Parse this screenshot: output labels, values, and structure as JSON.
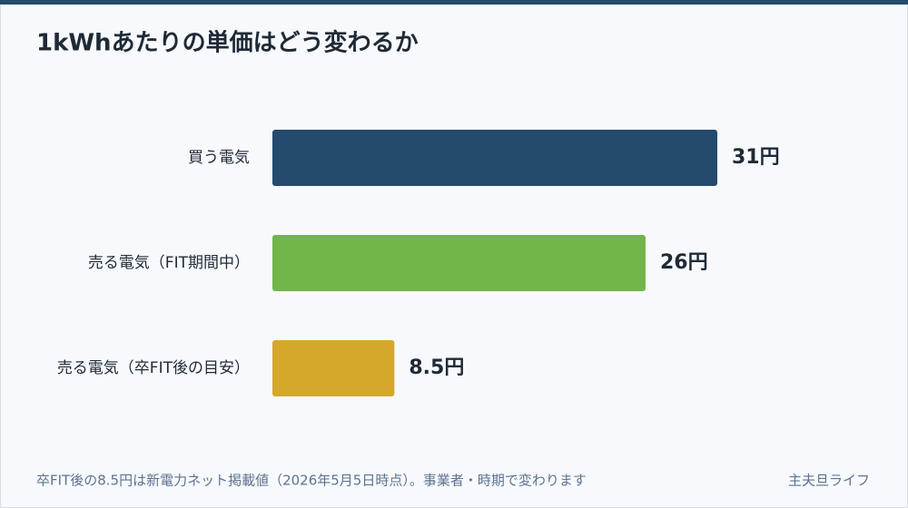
{
  "chart_data": {
    "type": "bar",
    "orientation": "horizontal",
    "title": "1kWhあたりの単価はどう変わるか",
    "categories": [
      "買う電気",
      "売る電気（FIT期間中）",
      "売る電気（卒FIT後の目安）"
    ],
    "values": [
      31,
      26,
      8.5
    ],
    "value_labels": [
      "31円",
      "26円",
      "8.5円"
    ],
    "colors": [
      "#244a6e",
      "#72b54a",
      "#d5a72b"
    ],
    "note": "卒FIT後の8.5円は新電力ネット掲載値（2026年5月5日時点）。事業者・時期で変わります",
    "source": "主夫旦ライフ"
  }
}
